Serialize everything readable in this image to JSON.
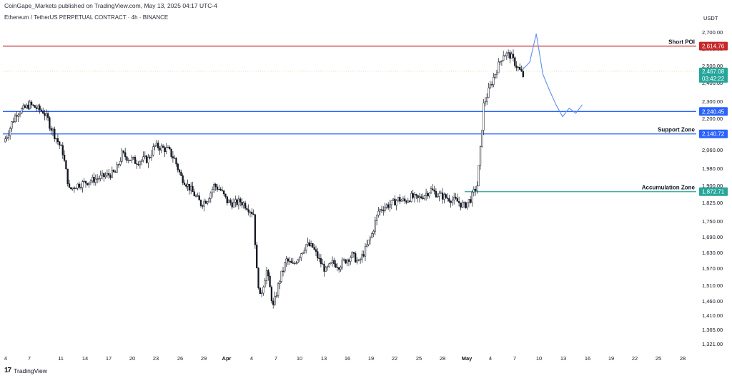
{
  "publisher_line": "CoinGape_Markets published on TradingView.com, May 13, 2025 04:17 UTC-4",
  "symbol_line": "Ethereum / TetherUS PERPETUAL CONTRACT · 4h · BINANCE",
  "footer_brand": "TradingView",
  "footer_icon": "tradingview-logo-icon",
  "chart_data": {
    "type": "candlestick",
    "currency_label": "USDT",
    "y_ticks": [
      "2,700.00",
      "2,600.00",
      "2,500.00",
      "2,400.00",
      "2,300.00",
      "2,200.00",
      "2,140.00",
      "2,060.00",
      "1,980.00",
      "1,900.00",
      "1,825.00",
      "1,750.00",
      "1,690.00",
      "1,630.00",
      "1,570.00",
      "1,510.00",
      "1,460.00",
      "1,410.00",
      "1,365.00",
      "1,321.00"
    ],
    "x_ticks": [
      "4",
      "7",
      "11",
      "14",
      "17",
      "20",
      "23",
      "26",
      "29",
      "Apr",
      "4",
      "7",
      "10",
      "13",
      "16",
      "19",
      "22",
      "25",
      "28",
      "May",
      "4",
      "7",
      "10",
      "13",
      "16",
      "19",
      "22",
      "25",
      "28"
    ],
    "price_path": [
      [
        0,
        2100
      ],
      [
        2,
        2230
      ],
      [
        4,
        2280
      ],
      [
        6,
        2240
      ],
      [
        8,
        2120
      ],
      [
        9,
        2050
      ],
      [
        10,
        1880
      ],
      [
        11,
        1900
      ],
      [
        13,
        1920
      ],
      [
        15,
        1940
      ],
      [
        17,
        1960
      ],
      [
        18,
        2040
      ],
      [
        20,
        2010
      ],
      [
        22,
        2020
      ],
      [
        23,
        2080
      ],
      [
        25,
        2060
      ],
      [
        26,
        2020
      ],
      [
        27,
        1940
      ],
      [
        28,
        1900
      ],
      [
        29,
        1860
      ],
      [
        30,
        1820
      ],
      [
        31,
        1840
      ],
      [
        32,
        1900
      ],
      [
        33,
        1880
      ],
      [
        34,
        1830
      ],
      [
        35,
        1820
      ],
      [
        36,
        1830
      ],
      [
        37,
        1810
      ],
      [
        38,
        1780
      ],
      [
        38.5,
        1560
      ],
      [
        39,
        1470
      ],
      [
        40,
        1560
      ],
      [
        41,
        1440
      ],
      [
        42,
        1530
      ],
      [
        43,
        1600
      ],
      [
        44,
        1580
      ],
      [
        45,
        1620
      ],
      [
        46,
        1660
      ],
      [
        47,
        1650
      ],
      [
        48,
        1600
      ],
      [
        49,
        1560
      ],
      [
        50,
        1590
      ],
      [
        51,
        1580
      ],
      [
        52,
        1600
      ],
      [
        53,
        1620
      ],
      [
        54,
        1590
      ],
      [
        55,
        1640
      ],
      [
        56,
        1700
      ],
      [
        57,
        1790
      ],
      [
        58,
        1810
      ],
      [
        59,
        1820
      ],
      [
        60,
        1840
      ],
      [
        61,
        1830
      ],
      [
        62,
        1850
      ],
      [
        63,
        1840
      ],
      [
        64,
        1860
      ],
      [
        65,
        1880
      ],
      [
        66,
        1860
      ],
      [
        67,
        1850
      ],
      [
        68,
        1840
      ],
      [
        69,
        1830
      ],
      [
        70,
        1810
      ],
      [
        71,
        1840
      ],
      [
        72,
        1900
      ],
      [
        72.5,
        2060
      ],
      [
        73,
        2280
      ],
      [
        74,
        2380
      ],
      [
        75,
        2480
      ],
      [
        76,
        2570
      ],
      [
        77,
        2560
      ],
      [
        78,
        2500
      ],
      [
        79,
        2440
      ]
    ],
    "projection_path": [
      [
        79,
        2480
      ],
      [
        80,
        2520
      ],
      [
        81,
        2690
      ],
      [
        82,
        2450
      ],
      [
        83,
        2360
      ],
      [
        84,
        2280
      ],
      [
        85,
        2210
      ],
      [
        86,
        2260
      ],
      [
        87,
        2230
      ],
      [
        88,
        2280
      ]
    ],
    "levels": [
      {
        "name": "Short POI",
        "value": 2614.76,
        "label": "2,614.76",
        "color": "#c62828"
      },
      {
        "name": "",
        "value": 2240.45,
        "label": "2,240.45",
        "color": "#2962ff"
      },
      {
        "name": "Support Zone",
        "value": 2140.72,
        "label": "2,140.72",
        "color": "#2962ff"
      },
      {
        "name": "Accumulation Zone",
        "value": 1872.71,
        "label": "1,872.71",
        "color": "#26a69a"
      }
    ],
    "last_price": {
      "value": 2467.08,
      "label": "2,467.08",
      "countdown": "03:42:22",
      "color": "#26a69a"
    }
  }
}
